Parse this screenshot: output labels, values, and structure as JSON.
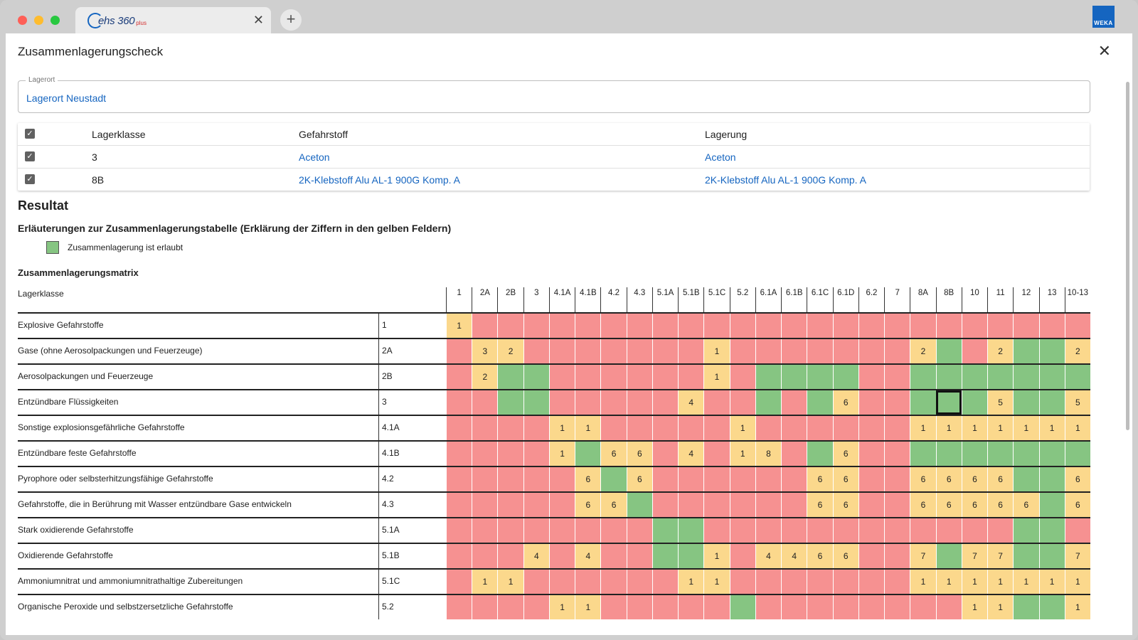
{
  "browser": {
    "tab_logo_text": "ehs 360",
    "tab_logo_plus": "plus",
    "tab_close": "✕",
    "new_tab": "+",
    "brand_badge": "WEKA"
  },
  "dialog": {
    "title": "Zusammenlagerungscheck",
    "close": "✕"
  },
  "lagerort": {
    "label": "Lagerort",
    "value": "Lagerort Neustadt"
  },
  "selection_table": {
    "headers": [
      "Lagerklasse",
      "Gefahrstoff",
      "Lagerung"
    ],
    "rows": [
      {
        "lagerklasse": "3",
        "gefahrstoff": "Aceton",
        "lagerung": "Aceton",
        "checked": true
      },
      {
        "lagerklasse": "8B",
        "gefahrstoff": "2K-Klebstoff Alu AL-1 900G Komp. A",
        "lagerung": "2K-Klebstoff Alu AL-1 900G Komp. A",
        "checked": true
      }
    ]
  },
  "result": {
    "heading": "Resultat",
    "explanation_heading": "Erläuterungen zur Zusammenlagerungstabelle (Erklärung der Ziffern in den gelben Feldern)",
    "legend_label": "Zusammenlagerung ist erlaubt",
    "legend_color": "#86c582",
    "matrix_heading": "Zusammenlagerungsmatrix",
    "matrix_row_header": "Lagerklasse"
  },
  "colors": {
    "red": "#f69191",
    "green": "#86c582",
    "yellow": "#fbd88c"
  },
  "matrix": {
    "columns": [
      "1",
      "2A",
      "2B",
      "3",
      "4.1A",
      "4.1B",
      "4.2",
      "4.3",
      "5.1A",
      "5.1B",
      "5.1C",
      "5.2",
      "6.1A",
      "6.1B",
      "6.1C",
      "6.1D",
      "6.2",
      "7",
      "8A",
      "8B",
      "10",
      "11",
      "12",
      "13",
      "10-13"
    ],
    "rows": [
      {
        "name": "Explosive Gefahrstoffe",
        "code": "1",
        "cells": [
          "y1",
          "r",
          "r",
          "r",
          "r",
          "r",
          "r",
          "r",
          "r",
          "r",
          "r",
          "r",
          "r",
          "r",
          "r",
          "r",
          "r",
          "r",
          "r",
          "r",
          "r",
          "r",
          "r",
          "r",
          "r"
        ]
      },
      {
        "name": "Gase (ohne Aerosolpackungen und Feuerzeuge)",
        "code": "2A",
        "cells": [
          "r",
          "y3",
          "y2",
          "r",
          "r",
          "r",
          "r",
          "r",
          "r",
          "r",
          "y1",
          "r",
          "r",
          "r",
          "r",
          "r",
          "r",
          "r",
          "y2",
          "g",
          "r",
          "y2",
          "g",
          "g",
          "y2"
        ]
      },
      {
        "name": "Aerosolpackungen und Feuerzeuge",
        "code": "2B",
        "cells": [
          "r",
          "y2",
          "g",
          "g",
          "r",
          "r",
          "r",
          "r",
          "r",
          "r",
          "y1",
          "r",
          "g",
          "g",
          "g",
          "g",
          "r",
          "r",
          "g",
          "g",
          "g",
          "g",
          "g",
          "g",
          "g"
        ]
      },
      {
        "name": "Entzündbare Flüssigkeiten",
        "code": "3",
        "cells": [
          "r",
          "r",
          "g",
          "g",
          "r",
          "r",
          "r",
          "r",
          "r",
          "y4",
          "r",
          "r",
          "g",
          "r",
          "g",
          "y6",
          "r",
          "r",
          "g",
          "gs",
          "g",
          "y5",
          "g",
          "g",
          "y5"
        ]
      },
      {
        "name": "Sonstige explosionsgefährliche Gefahrstoffe",
        "code": "4.1A",
        "cells": [
          "r",
          "r",
          "r",
          "r",
          "y1",
          "y1",
          "r",
          "r",
          "r",
          "r",
          "r",
          "y1",
          "r",
          "r",
          "r",
          "r",
          "r",
          "r",
          "y1",
          "y1",
          "y1",
          "y1",
          "y1",
          "y1",
          "y1"
        ]
      },
      {
        "name": "Entzündbare feste Gefahrstoffe",
        "code": "4.1B",
        "cells": [
          "r",
          "r",
          "r",
          "r",
          "y1",
          "g",
          "y6",
          "y6",
          "r",
          "y4",
          "r",
          "y1",
          "y8",
          "r",
          "g",
          "y6",
          "r",
          "r",
          "g",
          "g",
          "g",
          "g",
          "g",
          "g",
          "g"
        ]
      },
      {
        "name": "Pyrophore oder selbsterhitzungsfähige Gefahrstoffe",
        "code": "4.2",
        "cells": [
          "r",
          "r",
          "r",
          "r",
          "r",
          "y6",
          "g",
          "y6",
          "r",
          "r",
          "r",
          "r",
          "r",
          "r",
          "y6",
          "y6",
          "r",
          "r",
          "y6",
          "y6",
          "y6",
          "y6",
          "g",
          "g",
          "y6"
        ]
      },
      {
        "name": "Gefahrstoffe, die in Berührung mit Wasser entzündbare Gase entwickeln",
        "code": "4.3",
        "cells": [
          "r",
          "r",
          "r",
          "r",
          "r",
          "y6",
          "y6",
          "g",
          "r",
          "r",
          "r",
          "r",
          "r",
          "r",
          "y6",
          "y6",
          "r",
          "r",
          "y6",
          "y6",
          "y6",
          "y6",
          "y6",
          "g",
          "y6"
        ]
      },
      {
        "name": "Stark oxidierende Gefahrstoffe",
        "code": "5.1A",
        "cells": [
          "r",
          "r",
          "r",
          "r",
          "r",
          "r",
          "r",
          "r",
          "g",
          "g",
          "r",
          "r",
          "r",
          "r",
          "r",
          "r",
          "r",
          "r",
          "r",
          "r",
          "r",
          "r",
          "g",
          "g",
          "r"
        ]
      },
      {
        "name": "Oxidierende Gefahrstoffe",
        "code": "5.1B",
        "cells": [
          "r",
          "r",
          "r",
          "y4",
          "r",
          "y4",
          "r",
          "r",
          "g",
          "g",
          "y1",
          "r",
          "y4",
          "y4",
          "y6",
          "y6",
          "r",
          "r",
          "y7",
          "g",
          "y7",
          "y7",
          "g",
          "g",
          "y7"
        ]
      },
      {
        "name": "Ammoniumnitrat und ammoniumnitrathaltige Zubereitungen",
        "code": "5.1C",
        "cells": [
          "r",
          "y1",
          "y1",
          "r",
          "r",
          "r",
          "r",
          "r",
          "r",
          "y1",
          "y1",
          "r",
          "r",
          "r",
          "r",
          "r",
          "r",
          "r",
          "y1",
          "y1",
          "y1",
          "y1",
          "y1",
          "y1",
          "y1"
        ]
      },
      {
        "name": "Organische Peroxide und selbstzersetzliche Gefahrstoffe",
        "code": "5.2",
        "cells": [
          "r",
          "r",
          "r",
          "r",
          "y1",
          "y1",
          "r",
          "r",
          "r",
          "r",
          "r",
          "g",
          "r",
          "r",
          "r",
          "r",
          "r",
          "r",
          "r",
          "r",
          "y1",
          "y1",
          "g",
          "g",
          "y1"
        ]
      }
    ]
  }
}
